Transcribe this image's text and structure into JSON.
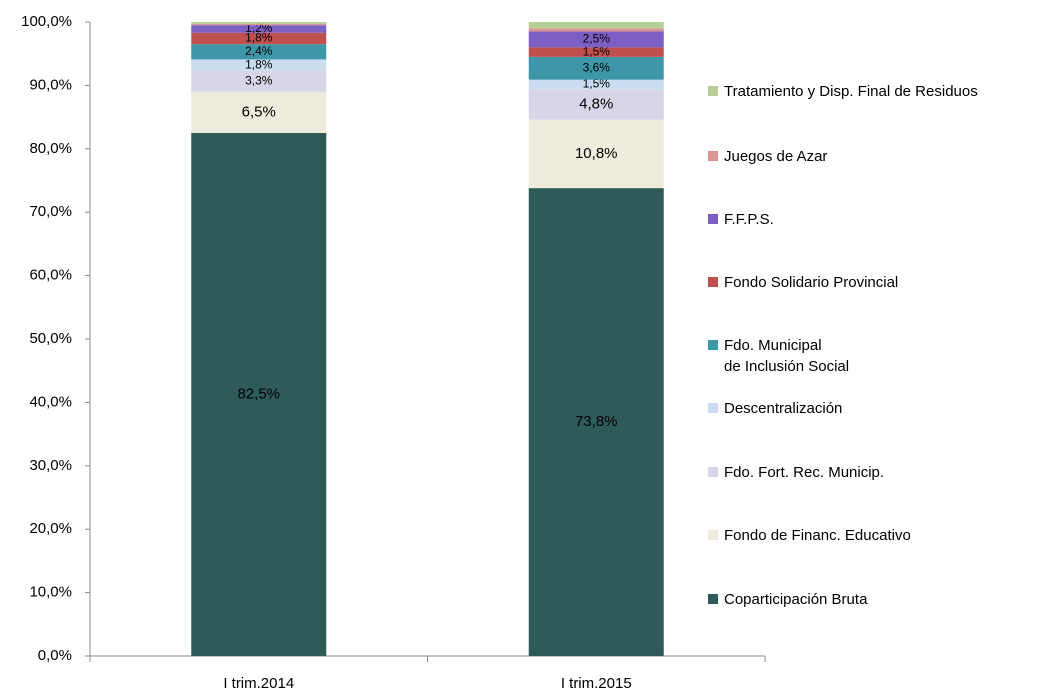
{
  "chart_data": {
    "type": "stacked_bar",
    "categories": [
      "I trim.2014",
      "I trim.2015"
    ],
    "series": [
      {
        "name": "Coparticipación Bruta",
        "color": "#2e5a57",
        "values": [
          82.5,
          73.8
        ],
        "value_labels": [
          "82,5%",
          "73,8%"
        ]
      },
      {
        "name": "Fondo de Financ. Educativo",
        "color": "#eeeadc",
        "values": [
          6.5,
          10.8
        ],
        "value_labels": [
          "6,5%",
          "10,8%"
        ]
      },
      {
        "name": "Fdo. Fort. Rec. Municip.",
        "color": "#d6d6e8",
        "values": [
          3.3,
          4.8
        ],
        "value_labels": [
          "3,3%",
          "4,8%"
        ]
      },
      {
        "name": "Descentralización",
        "color": "#c9dcf0",
        "values": [
          1.8,
          1.5
        ],
        "value_labels": [
          "1,8%",
          "1,5%"
        ]
      },
      {
        "name": "Fdo. Municipal\nde Inclusión Social",
        "color": "#3d97a8",
        "values": [
          2.4,
          3.6
        ],
        "value_labels": [
          "2,4%",
          "3,6%"
        ]
      },
      {
        "name": "Fondo Solidario Provincial",
        "color": "#c0504d",
        "values": [
          1.8,
          1.5
        ],
        "value_labels": [
          "1,8%",
          "1,5%"
        ]
      },
      {
        "name": "F.F.P.S.",
        "color": "#7b5fc4",
        "values": [
          1.2,
          2.5
        ],
        "value_labels": [
          "1,2%",
          "2,5%"
        ]
      },
      {
        "name": "Juegos de Azar",
        "color": "#d99694",
        "values": [
          0.2,
          0.5
        ],
        "value_labels": [
          null,
          null
        ]
      },
      {
        "name": "Tratamiento y Disp. Final de Residuos",
        "color": "#b7cf96",
        "values": [
          0.3,
          1.0
        ],
        "value_labels": [
          null,
          null
        ]
      }
    ],
    "ylim": [
      0,
      100
    ],
    "yticks": [
      {
        "value": 0,
        "label": "0,0%"
      },
      {
        "value": 10,
        "label": "10,0%"
      },
      {
        "value": 20,
        "label": "20,0%"
      },
      {
        "value": 30,
        "label": "30,0%"
      },
      {
        "value": 40,
        "label": "40,0%"
      },
      {
        "value": 50,
        "label": "50,0%"
      },
      {
        "value": 60,
        "label": "60,0%"
      },
      {
        "value": 70,
        "label": "70,0%"
      },
      {
        "value": 80,
        "label": "80,0%"
      },
      {
        "value": 90,
        "label": "90,0%"
      },
      {
        "value": 100,
        "label": "100,0%"
      }
    ],
    "grid": false
  }
}
